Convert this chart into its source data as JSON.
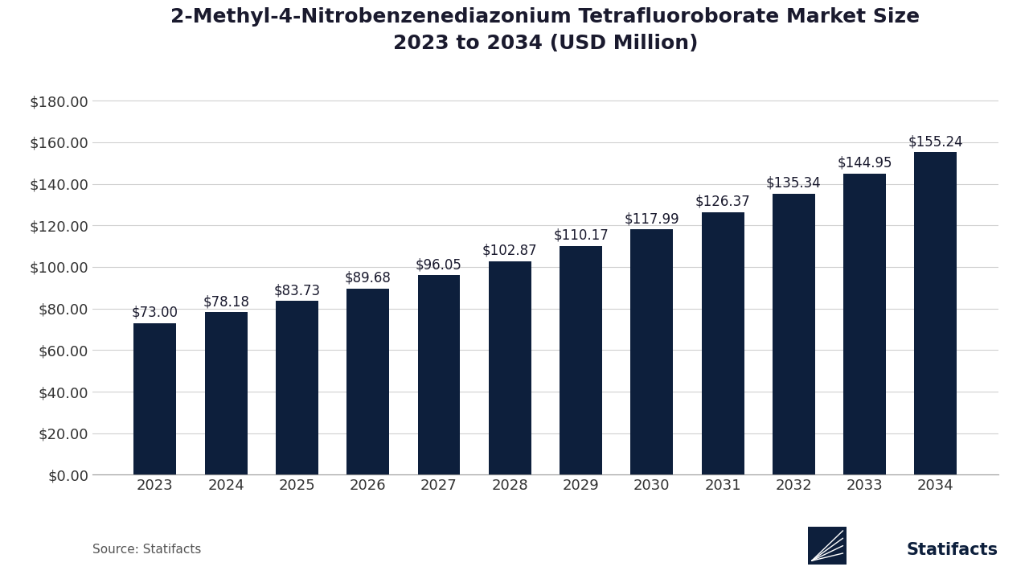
{
  "title_line1": "2-Methyl-4-Nitrobenzenediazonium Tetrafluoroborate Market Size",
  "title_line2": "2023 to 2034 (USD Million)",
  "years": [
    2023,
    2024,
    2025,
    2026,
    2027,
    2028,
    2029,
    2030,
    2031,
    2032,
    2033,
    2034
  ],
  "values": [
    73.0,
    78.18,
    83.73,
    89.68,
    96.05,
    102.87,
    110.17,
    117.99,
    126.37,
    135.34,
    144.95,
    155.24
  ],
  "bar_color": "#0d1f3c",
  "background_color": "#ffffff",
  "ylabel_ticks": [
    "$0.00",
    "$20.00",
    "$40.00",
    "$60.00",
    "$80.00",
    "$100.00",
    "$120.00",
    "$140.00",
    "$160.00",
    "$180.00"
  ],
  "ytick_values": [
    0,
    20,
    40,
    60,
    80,
    100,
    120,
    140,
    160,
    180
  ],
  "ylim": [
    0,
    195
  ],
  "source_text": "Source: Statifacts",
  "title_fontsize": 18,
  "tick_fontsize": 13,
  "bar_label_fontsize": 12
}
